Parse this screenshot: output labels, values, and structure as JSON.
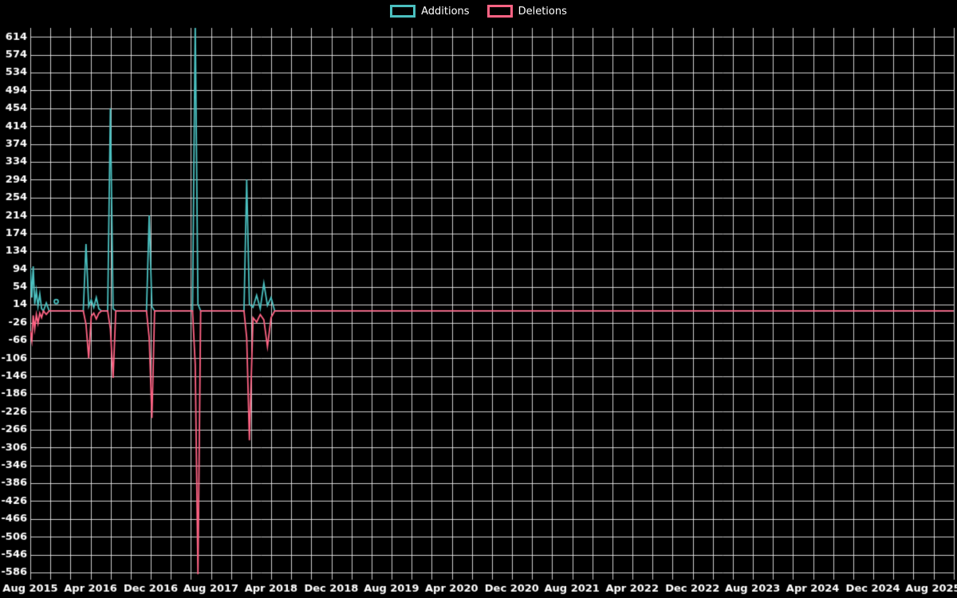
{
  "chart_data": {
    "type": "line",
    "title": "",
    "background_color": "#000000",
    "text_color": "#ffffff",
    "grid": {
      "show": true,
      "color": "#f2f2f2",
      "x_subdivisions": 3
    },
    "legend_position": "top",
    "legend": [
      {
        "label": "Additions",
        "color": "#4bc0c0"
      },
      {
        "label": "Deletions",
        "color": "#ff6384"
      }
    ],
    "ylim": [
      -602,
      634
    ],
    "x_ticks": [
      "Aug 2015",
      "Apr 2016",
      "Dec 2016",
      "Aug 2017",
      "Apr 2018",
      "Dec 2018",
      "Aug 2019",
      "Apr 2020",
      "Dec 2020",
      "Aug 2021",
      "Apr 2022",
      "Dec 2022",
      "Aug 2023",
      "Apr 2024",
      "Dec 2024",
      "Aug 2025"
    ],
    "x_tick_values": [
      2015.583,
      2016.25,
      2016.917,
      2017.583,
      2018.25,
      2018.917,
      2019.583,
      2020.25,
      2020.917,
      2021.583,
      2022.25,
      2022.917,
      2023.583,
      2024.25,
      2024.917,
      2025.583
    ],
    "y_ticks": [
      "614",
      "574",
      "534",
      "494",
      "454",
      "414",
      "374",
      "334",
      "294",
      "254",
      "214",
      "174",
      "134",
      "94",
      "54",
      "14",
      "-26",
      "-66",
      "-106",
      "-146",
      "-186",
      "-226",
      "-266",
      "-306",
      "-346",
      "-386",
      "-426",
      "-466",
      "-506",
      "-546",
      "-586"
    ],
    "y_tick_values": [
      614,
      574,
      534,
      494,
      454,
      414,
      374,
      334,
      294,
      254,
      214,
      174,
      134,
      94,
      54,
      14,
      -26,
      -66,
      -106,
      -146,
      -186,
      -226,
      -266,
      -306,
      -346,
      -386,
      -426,
      -466,
      -506,
      -546,
      -586
    ],
    "series": [
      {
        "name": "Additions",
        "color": "#4bc0c0",
        "marker": {
          "x": 2015.87,
          "y": 21
        },
        "points": [
          [
            2015.583,
            97
          ],
          [
            2015.6,
            30
          ],
          [
            2015.615,
            100
          ],
          [
            2015.632,
            15
          ],
          [
            2015.65,
            45
          ],
          [
            2015.668,
            10
          ],
          [
            2015.688,
            38
          ],
          [
            2015.708,
            5
          ],
          [
            2015.728,
            0
          ],
          [
            2015.76,
            18
          ],
          [
            2015.792,
            0
          ],
          [
            2016.17,
            0
          ],
          [
            2016.2,
            150
          ],
          [
            2016.23,
            10
          ],
          [
            2016.258,
            25
          ],
          [
            2016.286,
            8
          ],
          [
            2016.314,
            30
          ],
          [
            2016.342,
            5
          ],
          [
            2016.37,
            0
          ],
          [
            2016.44,
            0
          ],
          [
            2016.47,
            454
          ],
          [
            2016.5,
            5
          ],
          [
            2016.53,
            0
          ],
          [
            2016.87,
            0
          ],
          [
            2016.9,
            214
          ],
          [
            2016.93,
            10
          ],
          [
            2016.96,
            0
          ],
          [
            2017.38,
            0
          ],
          [
            2017.41,
            650
          ],
          [
            2017.44,
            15
          ],
          [
            2017.47,
            0
          ],
          [
            2017.95,
            0
          ],
          [
            2017.98,
            294
          ],
          [
            2018.01,
            15
          ],
          [
            2018.05,
            8
          ],
          [
            2018.09,
            35
          ],
          [
            2018.13,
            5
          ],
          [
            2018.17,
            62
          ],
          [
            2018.21,
            12
          ],
          [
            2018.25,
            30
          ],
          [
            2018.29,
            0
          ],
          [
            2025.81,
            0
          ]
        ]
      },
      {
        "name": "Deletions",
        "color": "#ff6384",
        "points": [
          [
            2015.583,
            -45
          ],
          [
            2015.6,
            -66
          ],
          [
            2015.615,
            -10
          ],
          [
            2015.632,
            -40
          ],
          [
            2015.65,
            -8
          ],
          [
            2015.668,
            -28
          ],
          [
            2015.688,
            -5
          ],
          [
            2015.708,
            -15
          ],
          [
            2015.728,
            0
          ],
          [
            2015.76,
            -8
          ],
          [
            2015.792,
            0
          ],
          [
            2016.17,
            0
          ],
          [
            2016.2,
            -30
          ],
          [
            2016.23,
            -106
          ],
          [
            2016.258,
            -12
          ],
          [
            2016.286,
            -5
          ],
          [
            2016.314,
            -18
          ],
          [
            2016.342,
            -5
          ],
          [
            2016.37,
            0
          ],
          [
            2016.44,
            0
          ],
          [
            2016.47,
            -40
          ],
          [
            2016.5,
            -150
          ],
          [
            2016.53,
            0
          ],
          [
            2016.87,
            0
          ],
          [
            2016.9,
            -60
          ],
          [
            2016.93,
            -240
          ],
          [
            2016.96,
            0
          ],
          [
            2017.38,
            0
          ],
          [
            2017.41,
            -120
          ],
          [
            2017.44,
            -590
          ],
          [
            2017.47,
            0
          ],
          [
            2017.95,
            0
          ],
          [
            2017.98,
            -60
          ],
          [
            2018.01,
            -290
          ],
          [
            2018.05,
            -15
          ],
          [
            2018.09,
            -25
          ],
          [
            2018.13,
            -8
          ],
          [
            2018.17,
            -20
          ],
          [
            2018.21,
            -80
          ],
          [
            2018.25,
            -15
          ],
          [
            2018.29,
            0
          ],
          [
            2025.81,
            0
          ]
        ]
      }
    ]
  }
}
